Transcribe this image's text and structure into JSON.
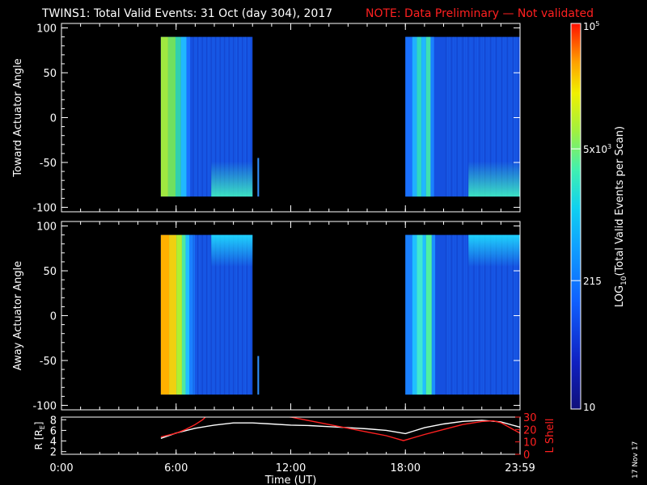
{
  "title": {
    "main": "TWINS1: Total Valid Events: 31 Oct (day 304), 2017",
    "note": "NOTE: Data Preliminary — Not validated",
    "note_color": "#ff2020"
  },
  "stamp": "17 Nov 17",
  "chart_data": [
    {
      "type": "heatmap",
      "panel": "top",
      "ylabel": "Toward Actuator Angle",
      "ylim": [
        -105,
        105
      ],
      "yticks": [
        100,
        50,
        0,
        -50,
        -100
      ],
      "xlim": [
        0,
        24
      ],
      "coverage": [
        {
          "x": [
            5.2,
            10.0
          ],
          "y": [
            -88,
            90
          ]
        },
        {
          "x": [
            18.0,
            24.0
          ],
          "y": [
            -88,
            90
          ]
        }
      ],
      "isolated_strip": {
        "x": 10.3,
        "y": [
          -88,
          -45
        ]
      },
      "colorbar_note": "log10 counts ~ 2.2 to 3.5"
    },
    {
      "type": "heatmap",
      "panel": "middle",
      "ylabel": "Away Actuator Angle",
      "ylim": [
        -105,
        105
      ],
      "yticks": [
        100,
        50,
        0,
        -50,
        -100
      ],
      "xlim": [
        0,
        24
      ],
      "coverage": [
        {
          "x": [
            5.2,
            10.0
          ],
          "y": [
            -88,
            90
          ]
        },
        {
          "x": [
            18.0,
            24.0
          ],
          "y": [
            -88,
            90
          ]
        }
      ],
      "isolated_strip": {
        "x": 10.3,
        "y": [
          -88,
          -45
        ]
      }
    },
    {
      "type": "line",
      "panel": "bottom",
      "ylabel": "R [R",
      "ylabel_sub": "E",
      "ylabel_end": "]",
      "ylim": [
        1.5,
        8.5
      ],
      "yticks": [
        8,
        6,
        4,
        2
      ],
      "y2label": "L Shell",
      "y2lim": [
        0,
        30
      ],
      "y2ticks": [
        30,
        20,
        10,
        0
      ],
      "xlabel": "Time (UT)",
      "xticks": [
        {
          "t": 0,
          "label": "0:00"
        },
        {
          "t": 6,
          "label": "6:00"
        },
        {
          "t": 12,
          "label": "12:00"
        },
        {
          "t": 18,
          "label": "18:00"
        },
        {
          "t": 24,
          "label": "23:59"
        }
      ],
      "series": [
        {
          "color": "#ffffff",
          "points": [
            [
              5.2,
              4.5
            ],
            [
              6,
              5.5
            ],
            [
              7,
              6.4
            ],
            [
              8,
              7.0
            ],
            [
              9,
              7.4
            ],
            [
              10,
              7.4
            ],
            [
              11,
              7.2
            ],
            [
              12,
              7.0
            ],
            [
              13,
              6.9
            ],
            [
              14,
              6.7
            ],
            [
              15,
              6.5
            ],
            [
              16,
              6.3
            ],
            [
              17,
              6.0
            ],
            [
              18,
              5.4
            ],
            [
              19,
              6.5
            ],
            [
              20,
              7.2
            ],
            [
              21,
              7.7
            ],
            [
              22,
              7.9
            ],
            [
              23,
              7.6
            ],
            [
              24,
              6.6
            ]
          ]
        },
        {
          "color": "#ff2020",
          "axis": "y2",
          "points": [
            [
              5.2,
              14
            ],
            [
              6,
              17
            ],
            [
              6.5,
              20
            ],
            [
              7.0,
              24
            ],
            [
              7.4,
              28
            ],
            [
              7.6,
              31
            ],
            [
              11.5,
              31
            ],
            [
              12,
              30
            ],
            [
              13,
              27
            ],
            [
              14,
              24
            ],
            [
              15,
              21
            ],
            [
              16,
              18
            ],
            [
              17,
              15
            ],
            [
              17.9,
              11
            ],
            [
              19,
              16
            ],
            [
              20,
              20
            ],
            [
              21,
              24
            ],
            [
              22,
              26.5
            ],
            [
              22.6,
              27
            ],
            [
              23,
              25.5
            ],
            [
              24,
              17
            ]
          ]
        }
      ]
    }
  ],
  "colorbar": {
    "label": "LOG",
    "label_sub": "10",
    "label_rest": "(Total Valid Events per Scan)",
    "ticks": [
      {
        "value_log": 5,
        "label": "10",
        "sup": "5"
      },
      {
        "value_log": 3.699,
        "label": "5x10",
        "sup": "3"
      },
      {
        "value_log": 2.332,
        "label": "215",
        "sup": ""
      },
      {
        "value_log": 1,
        "label": "10",
        "sup": ""
      }
    ],
    "range_log": [
      1,
      5
    ]
  }
}
